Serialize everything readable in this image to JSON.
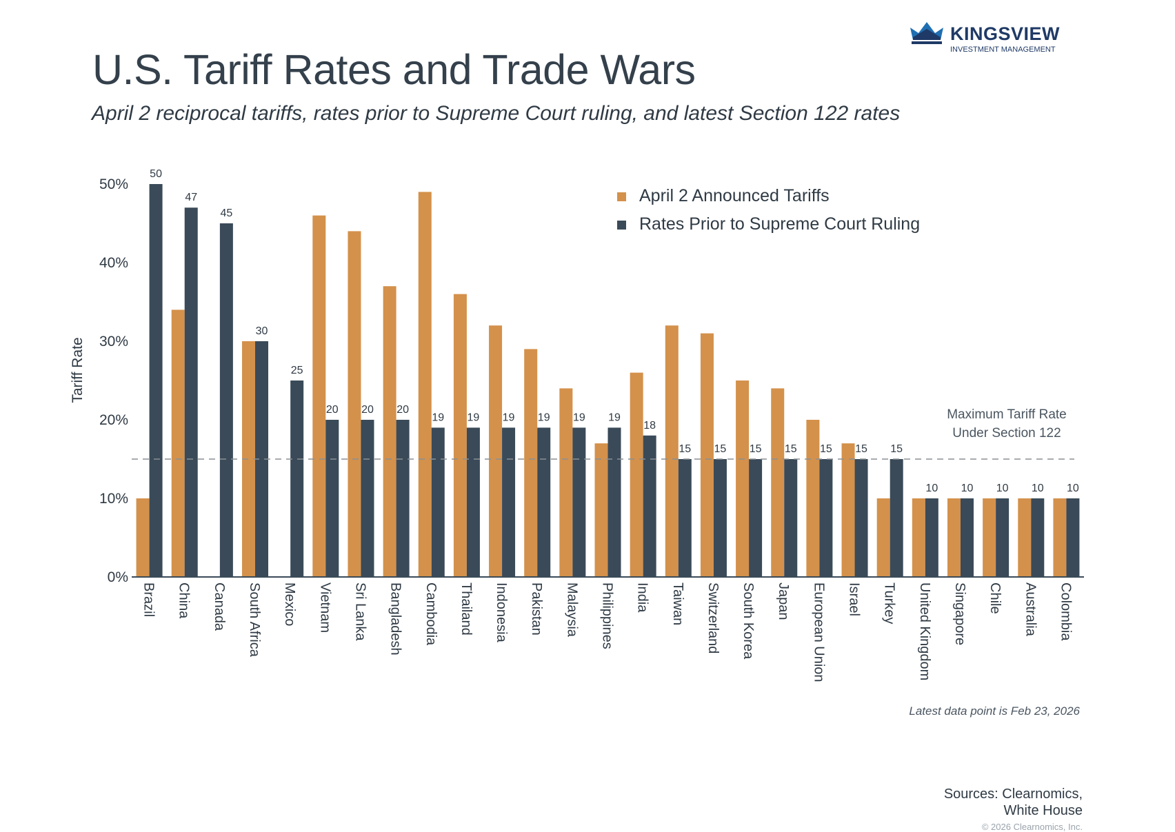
{
  "header": {
    "title": "U.S. Tariff Rates and Trade Wars",
    "subtitle": "April 2 reciprocal tariffs, rates prior to Supreme Court ruling, and latest Section 122 rates"
  },
  "logo": {
    "name": "KINGSVIEW",
    "tagline": "INVESTMENT MANAGEMENT",
    "color": "#1f3a66"
  },
  "footer": {
    "note": "Latest data point is Feb 23, 2026",
    "sources_line1": "Sources: Clearnomics,",
    "sources_line2": "White House",
    "copyright": "© 2026 Clearnomics, Inc."
  },
  "chart_data": {
    "type": "bar",
    "ylabel": "Tariff Rate",
    "ylim": [
      0,
      50
    ],
    "yticks": [
      "0%",
      "10%",
      "20%",
      "30%",
      "40%",
      "50%"
    ],
    "grid": false,
    "legend_position": "top-right",
    "categories": [
      "Brazil",
      "China",
      "Canada",
      "South Africa",
      "Mexico",
      "Vietnam",
      "Sri Lanka",
      "Bangladesh",
      "Cambodia",
      "Thailand",
      "Indonesia",
      "Pakistan",
      "Malaysia",
      "Philippines",
      "India",
      "Taiwan",
      "Switzerland",
      "South Korea",
      "Japan",
      "European Union",
      "Israel",
      "Turkey",
      "United Kingdom",
      "Singapore",
      "Chile",
      "Australia",
      "Colombia"
    ],
    "series": [
      {
        "name": "April 2 Announced Tariffs",
        "color": "#d4914b",
        "values": [
          10,
          34,
          null,
          30,
          null,
          46,
          44,
          37,
          49,
          36,
          32,
          29,
          24,
          17,
          26,
          32,
          31,
          25,
          24,
          20,
          17,
          10,
          10,
          10,
          10,
          10,
          10
        ]
      },
      {
        "name": "Rates Prior to Supreme Court Ruling",
        "color": "#3a4a58",
        "values": [
          50,
          47,
          45,
          30,
          25,
          20,
          20,
          20,
          19,
          19,
          19,
          19,
          19,
          19,
          18,
          15,
          15,
          15,
          15,
          15,
          15,
          15,
          10,
          10,
          10,
          10,
          10
        ]
      }
    ],
    "data_labels": [
      "50",
      "47",
      "45",
      "30",
      "25",
      "20",
      "20",
      "20",
      "19",
      "19",
      "19",
      "19",
      "19",
      "19",
      "18",
      "15",
      "15",
      "15",
      "15",
      "15",
      "15",
      "15",
      "10",
      "10",
      "10",
      "10",
      "10"
    ],
    "reference_line": {
      "value": 15,
      "label_line1": "Maximum Tariff Rate",
      "label_line2": "Under Section 122"
    }
  }
}
